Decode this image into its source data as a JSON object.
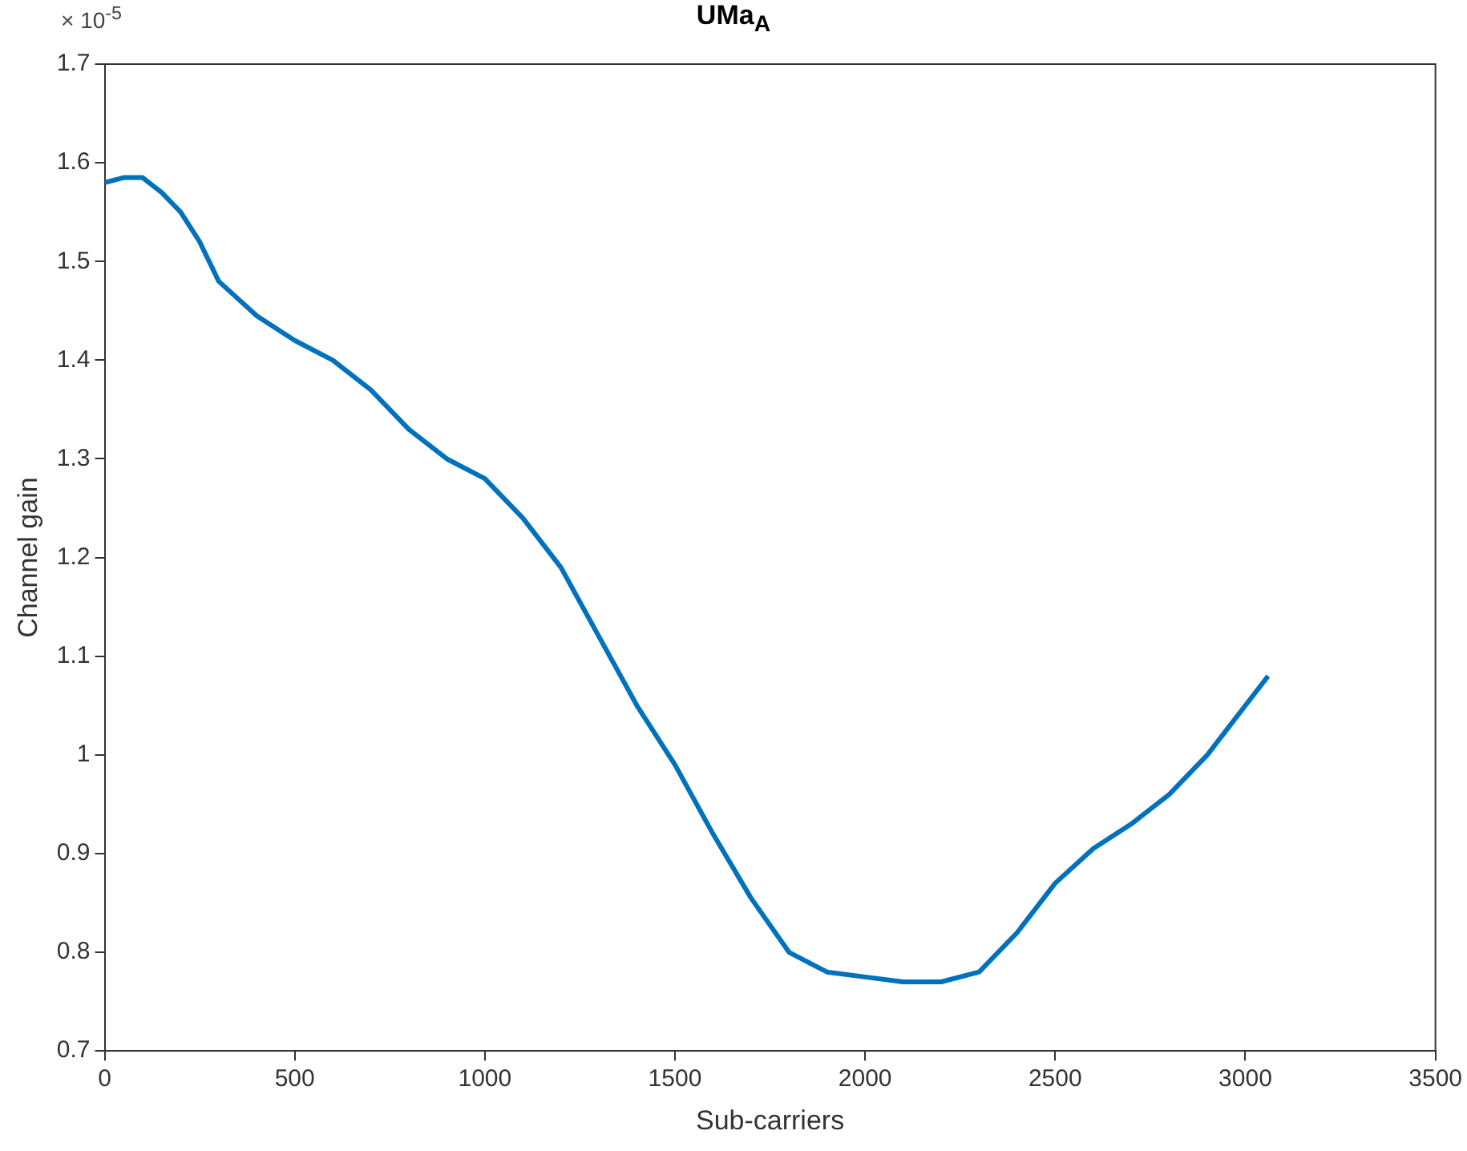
{
  "chart_data": {
    "type": "line",
    "title": "UMa$_{A}$",
    "xlabel": "Sub-carriers",
    "ylabel": "Channel gain",
    "annotations": [
      "× 10$^{-5}$"
    ],
    "x": [
      0,
      50,
      100,
      150,
      200,
      250,
      300,
      400,
      500,
      600,
      700,
      800,
      900,
      1000,
      1100,
      1200,
      1300,
      1400,
      1500,
      1600,
      1700,
      1800,
      1900,
      2000,
      2100,
      2200,
      2300,
      2400,
      2500,
      2600,
      2700,
      2800,
      2900,
      3000,
      3060
    ],
    "series": [
      {
        "color": "#0072bd",
        "values": [
          1.58,
          1.585,
          1.585,
          1.57,
          1.55,
          1.52,
          1.48,
          1.445,
          1.42,
          1.4,
          1.37,
          1.33,
          1.3,
          1.28,
          1.24,
          1.19,
          1.12,
          1.05,
          0.99,
          0.92,
          0.855,
          0.8,
          0.78,
          0.775,
          0.77,
          0.77,
          0.78,
          0.82,
          0.87,
          0.905,
          0.93,
          0.96,
          1.0,
          1.05,
          1.08
        ]
      }
    ],
    "xlim": [
      0,
      3500
    ],
    "xticks": [
      0,
      500,
      1000,
      1500,
      2000,
      2500,
      3000,
      3500
    ],
    "ylim": [
      0.7,
      1.7
    ],
    "yticks": [
      0.7,
      0.8,
      0.9,
      1,
      1.1,
      1.2,
      1.3,
      1.4,
      1.5,
      1.6,
      1.7
    ],
    "grid": false,
    "legend": false,
    "marker": "none",
    "line_style": "solid"
  }
}
